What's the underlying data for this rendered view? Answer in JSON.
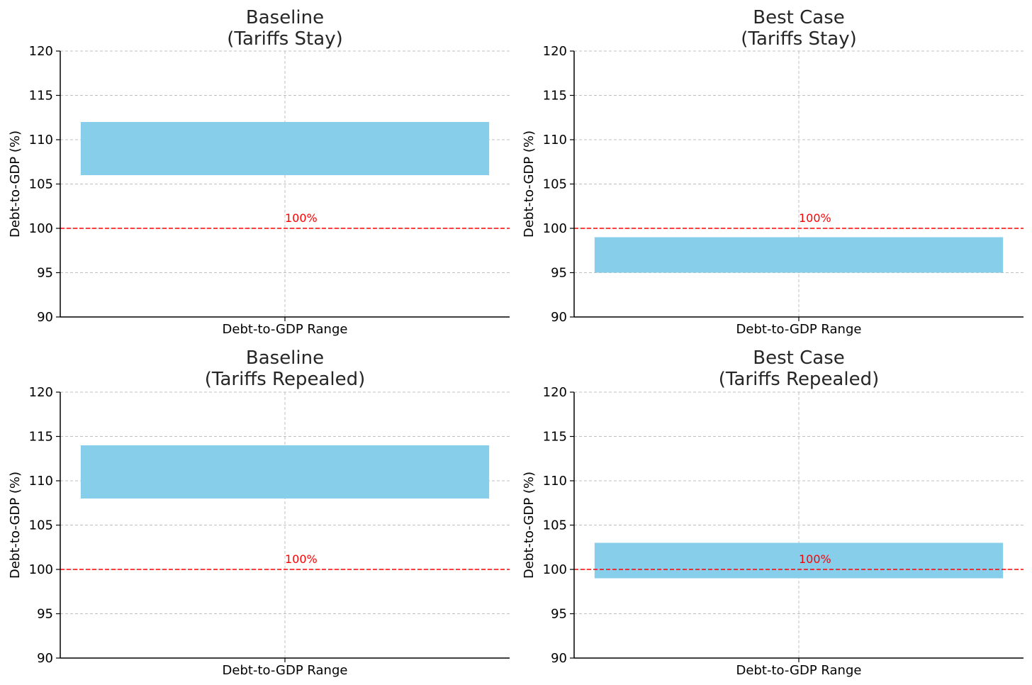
{
  "chart_data": [
    {
      "type": "bar",
      "title": [
        "Baseline",
        "(Tariffs Stay)"
      ],
      "xlabel": "Debt-to-GDP Range",
      "ylabel": "Debt-to-GDP (%)",
      "ylim": [
        90,
        120
      ],
      "yticks": [
        90,
        95,
        100,
        105,
        110,
        115,
        120
      ],
      "range": [
        106,
        112
      ],
      "reference_line": {
        "value": 100,
        "label": "100%"
      },
      "grid": true
    },
    {
      "type": "bar",
      "title": [
        "Best Case",
        "(Tariffs Stay)"
      ],
      "xlabel": "Debt-to-GDP Range",
      "ylabel": "Debt-to-GDP (%)",
      "ylim": [
        90,
        120
      ],
      "yticks": [
        90,
        95,
        100,
        105,
        110,
        115,
        120
      ],
      "range": [
        95,
        99
      ],
      "reference_line": {
        "value": 100,
        "label": "100%"
      },
      "grid": true
    },
    {
      "type": "bar",
      "title": [
        "Baseline",
        "(Tariffs Repealed)"
      ],
      "xlabel": "Debt-to-GDP Range",
      "ylabel": "Debt-to-GDP (%)",
      "ylim": [
        90,
        120
      ],
      "yticks": [
        90,
        95,
        100,
        105,
        110,
        115,
        120
      ],
      "range": [
        108,
        114
      ],
      "reference_line": {
        "value": 100,
        "label": "100%"
      },
      "grid": true
    },
    {
      "type": "bar",
      "title": [
        "Best Case",
        "(Tariffs Repealed)"
      ],
      "xlabel": "Debt-to-GDP Range",
      "ylabel": "Debt-to-GDP (%)",
      "ylim": [
        90,
        120
      ],
      "yticks": [
        90,
        95,
        100,
        105,
        110,
        115,
        120
      ],
      "range": [
        99,
        103
      ],
      "reference_line": {
        "value": 100,
        "label": "100%"
      },
      "grid": true
    }
  ],
  "colors": {
    "bar": "#87ceeb",
    "reference_line": "#ff0000",
    "grid": "#bfbfbf",
    "axis": "#000000",
    "title": "#262626"
  }
}
